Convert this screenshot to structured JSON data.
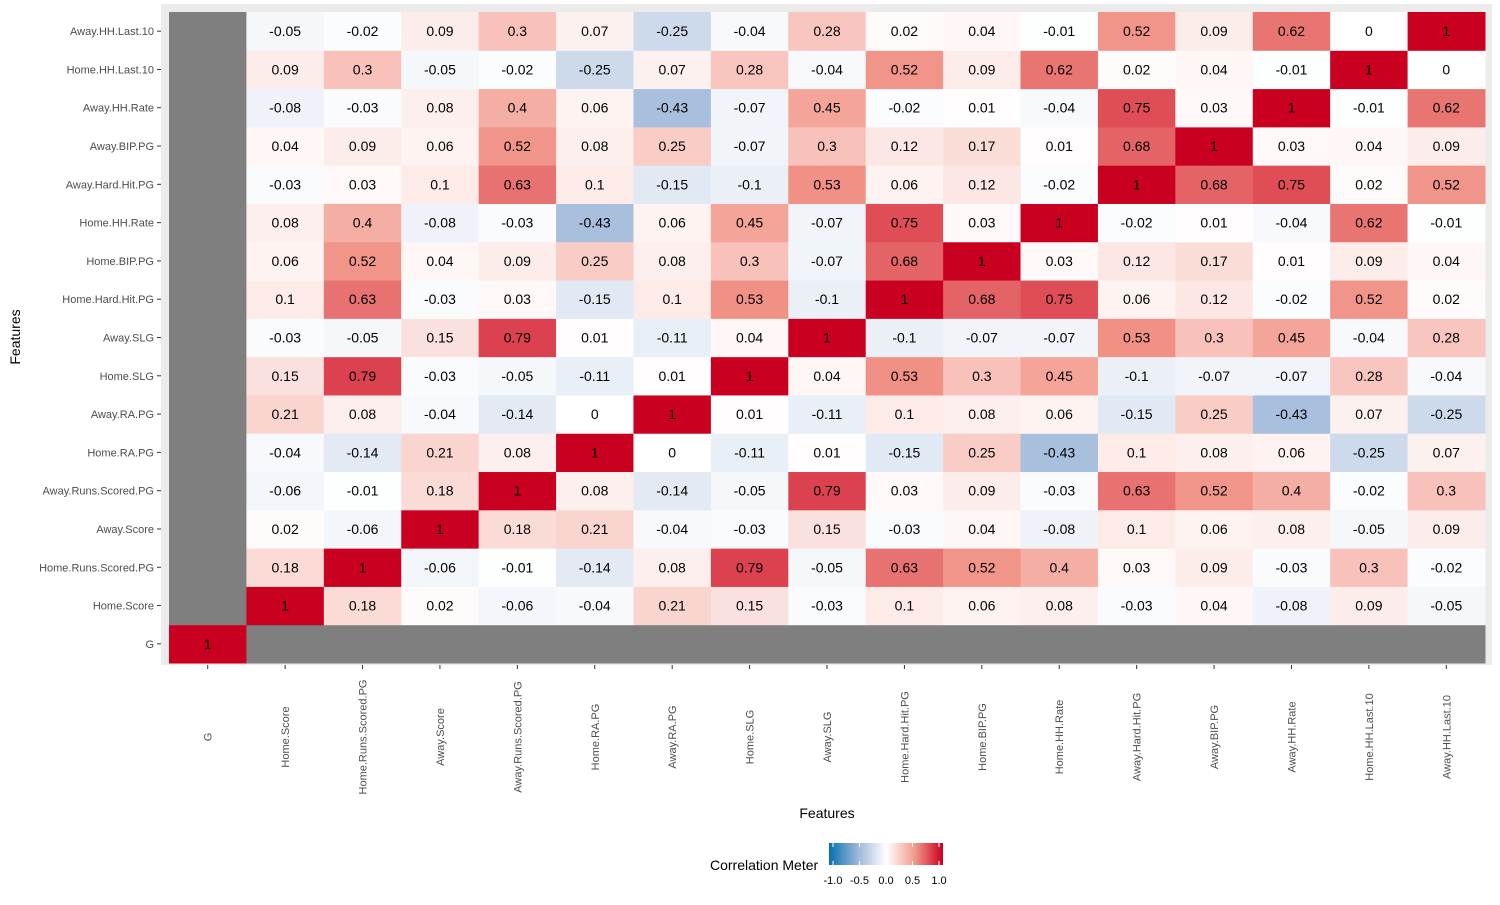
{
  "chart_data": {
    "type": "heatmap",
    "title": "",
    "xlabel": "Features",
    "ylabel": "Features",
    "categories": [
      "G",
      "Home.Score",
      "Home.Runs.Scored.PG",
      "Away.Score",
      "Away.Runs.Scored.PG",
      "Home.RA.PG",
      "Away.RA.PG",
      "Home.SLG",
      "Away.SLG",
      "Home.Hard.Hit.PG",
      "Home.BIP.PG",
      "Home.HH.Rate",
      "Away.Hard.Hit.PG",
      "Away.BIP.PG",
      "Away.HH.Rate",
      "Home.HH.Last.10",
      "Away.HH.Last.10"
    ],
    "values": [
      [
        1,
        null,
        null,
        null,
        null,
        null,
        null,
        null,
        null,
        null,
        null,
        null,
        null,
        null,
        null,
        null,
        null
      ],
      [
        null,
        1,
        0.18,
        0.02,
        -0.06,
        -0.04,
        0.21,
        0.15,
        -0.03,
        0.1,
        0.06,
        0.08,
        -0.03,
        0.04,
        -0.08,
        0.09,
        -0.05
      ],
      [
        null,
        0.18,
        1,
        -0.06,
        -0.01,
        -0.14,
        0.08,
        0.79,
        -0.05,
        0.63,
        0.52,
        0.4,
        0.03,
        0.09,
        -0.03,
        0.3,
        -0.02
      ],
      [
        null,
        0.02,
        -0.06,
        1,
        0.18,
        0.21,
        -0.04,
        -0.03,
        0.15,
        -0.03,
        0.04,
        -0.08,
        0.1,
        0.06,
        0.08,
        -0.05,
        0.09
      ],
      [
        null,
        -0.06,
        -0.01,
        0.18,
        1,
        0.08,
        -0.14,
        -0.05,
        0.79,
        0.03,
        0.09,
        -0.03,
        0.63,
        0.52,
        0.4,
        -0.02,
        0.3
      ],
      [
        null,
        -0.04,
        -0.14,
        0.21,
        0.08,
        1,
        0,
        -0.11,
        0.01,
        -0.15,
        0.25,
        -0.43,
        0.1,
        0.08,
        0.06,
        -0.25,
        0.07
      ],
      [
        null,
        0.21,
        0.08,
        -0.04,
        -0.14,
        0,
        1,
        0.01,
        -0.11,
        0.1,
        0.08,
        0.06,
        -0.15,
        0.25,
        -0.43,
        0.07,
        -0.25
      ],
      [
        null,
        0.15,
        0.79,
        -0.03,
        -0.05,
        -0.11,
        0.01,
        1,
        0.04,
        0.53,
        0.3,
        0.45,
        -0.1,
        -0.07,
        -0.07,
        0.28,
        -0.04
      ],
      [
        null,
        -0.03,
        -0.05,
        0.15,
        0.79,
        0.01,
        -0.11,
        0.04,
        1,
        -0.1,
        -0.07,
        -0.07,
        0.53,
        0.3,
        0.45,
        -0.04,
        0.28
      ],
      [
        null,
        0.1,
        0.63,
        -0.03,
        0.03,
        -0.15,
        0.1,
        0.53,
        -0.1,
        1,
        0.68,
        0.75,
        0.06,
        0.12,
        -0.02,
        0.52,
        0.02
      ],
      [
        null,
        0.06,
        0.52,
        0.04,
        0.09,
        0.25,
        0.08,
        0.3,
        -0.07,
        0.68,
        1,
        0.03,
        0.12,
        0.17,
        0.01,
        0.09,
        0.04
      ],
      [
        null,
        0.08,
        0.4,
        -0.08,
        -0.03,
        -0.43,
        0.06,
        0.45,
        -0.07,
        0.75,
        0.03,
        1,
        -0.02,
        0.01,
        -0.04,
        0.62,
        -0.01
      ],
      [
        null,
        -0.03,
        0.03,
        0.1,
        0.63,
        0.1,
        -0.15,
        -0.1,
        0.53,
        0.06,
        0.12,
        -0.02,
        1,
        0.68,
        0.75,
        0.02,
        0.52
      ],
      [
        null,
        0.04,
        0.09,
        0.06,
        0.52,
        0.08,
        0.25,
        -0.07,
        0.3,
        0.12,
        0.17,
        0.01,
        0.68,
        1,
        0.03,
        0.04,
        0.09
      ],
      [
        null,
        -0.08,
        -0.03,
        0.08,
        0.4,
        0.06,
        -0.43,
        -0.07,
        0.45,
        -0.02,
        0.01,
        -0.04,
        0.75,
        0.03,
        1,
        -0.01,
        0.62
      ],
      [
        null,
        0.09,
        0.3,
        -0.05,
        -0.02,
        -0.25,
        0.07,
        0.28,
        -0.04,
        0.52,
        0.09,
        0.62,
        0.02,
        0.04,
        -0.01,
        1,
        0
      ],
      [
        null,
        -0.05,
        -0.02,
        0.09,
        0.3,
        0.07,
        -0.25,
        -0.04,
        0.28,
        0.02,
        0.04,
        -0.01,
        0.52,
        0.09,
        0.62,
        0,
        1
      ]
    ],
    "value_range": [
      -1,
      1
    ],
    "na_color": "#7f7f7f",
    "color_scale": {
      "low": "#0571b0",
      "mid": "#ffffff",
      "high": "#ca0020"
    },
    "legend": {
      "title": "Correlation Meter",
      "position": "bottom",
      "ticks": [
        "-1.0",
        "-0.5",
        "0.0",
        "0.5",
        "1.0"
      ]
    },
    "grid": true
  }
}
